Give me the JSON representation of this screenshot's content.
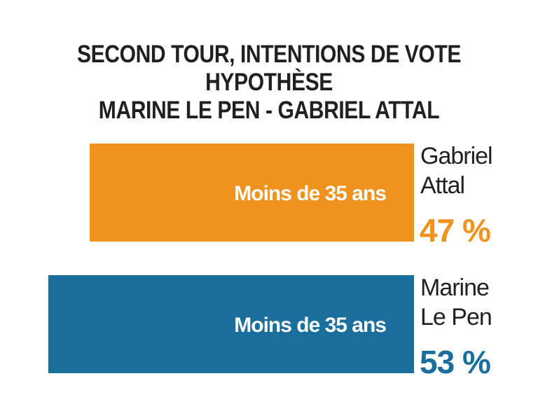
{
  "chart_data": {
    "type": "bar",
    "orientation": "horizontal",
    "title": [
      "SECOND TOUR, INTENTIONS DE VOTE",
      "HYPOTHÈSE",
      "MARINE LE PEN - GABRIEL ATTAL"
    ],
    "xlim": [
      0,
      100
    ],
    "grid": false,
    "categories": [
      "Gabriel Attal",
      "Marine Le Pen"
    ],
    "series": [
      {
        "candidate_lines": [
          "Gabriel",
          "Attal"
        ],
        "bar_label": "Moins de 35 ans",
        "value": 47,
        "value_label": "47 %",
        "color": "#f0921e"
      },
      {
        "candidate_lines": [
          "Marine",
          "Le Pen"
        ],
        "bar_label": "Moins de 35 ans",
        "value": 53,
        "value_label": "53 %",
        "color": "#1a6e9c"
      }
    ]
  }
}
